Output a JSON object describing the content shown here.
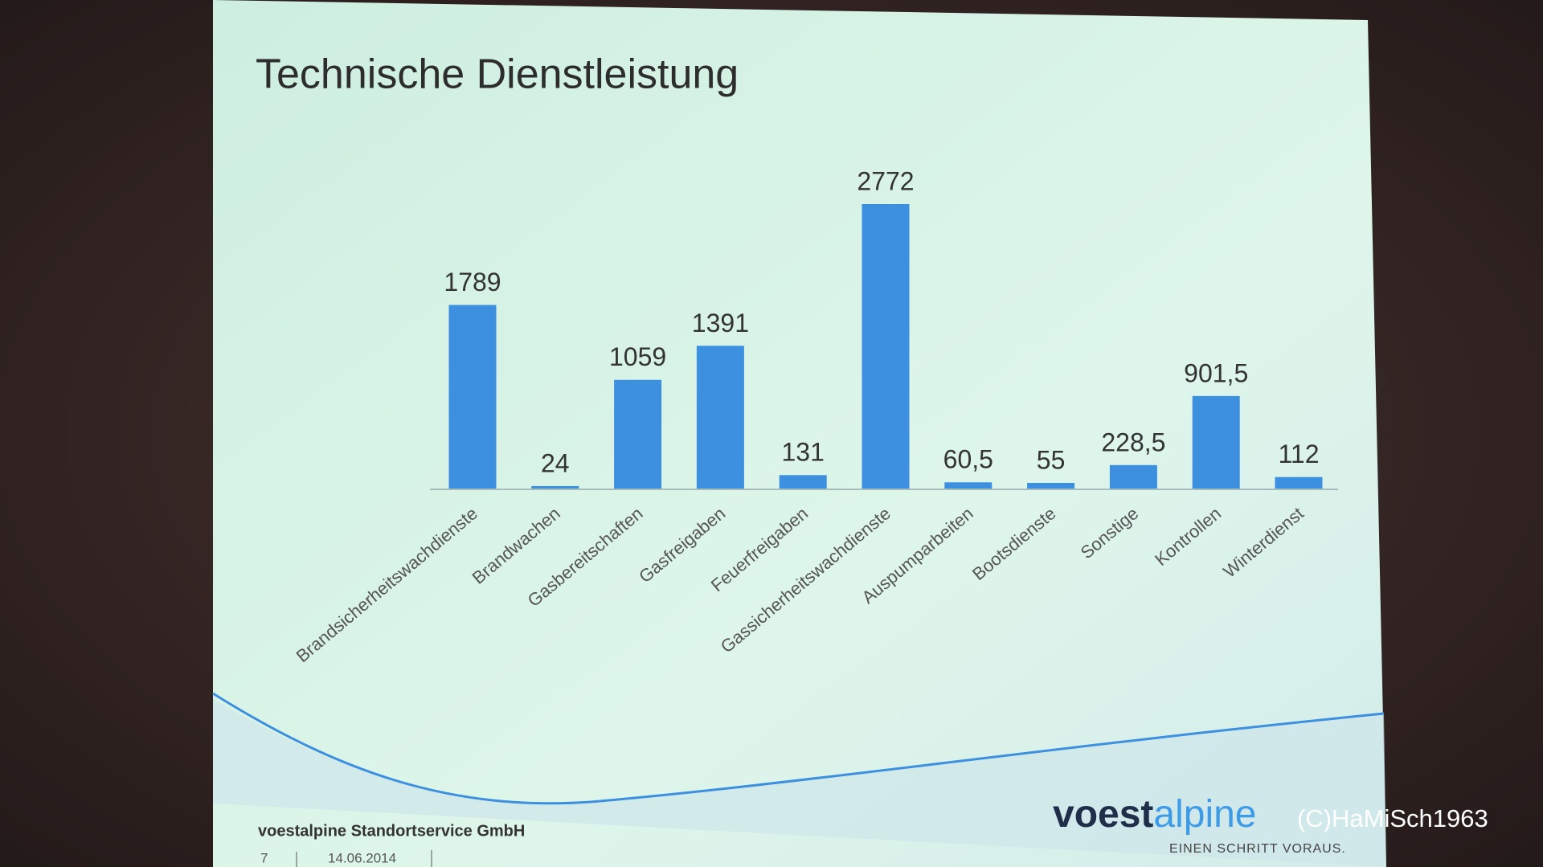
{
  "title": "Technische Dienstleistung",
  "chart_data": {
    "type": "bar",
    "categories": [
      "Brandsicherheitswachdienste",
      "Brandwachen",
      "Gasbereitschaften",
      "Gasfreigaben",
      "Feuerfreigaben",
      "Gassicherheitswachdienste",
      "Auspumparbeiten",
      "Bootsdienste",
      "Sonstige",
      "Kontrollen",
      "Winterdienst"
    ],
    "values": [
      1789,
      24,
      1059,
      1391,
      131,
      2772,
      60.5,
      55,
      228.5,
      901.5,
      112
    ],
    "value_labels": [
      "1789",
      "24",
      "1059",
      "1391",
      "131",
      "2772",
      "60,5",
      "55",
      "228,5",
      "901,5",
      "112"
    ],
    "color": "#3d8fe0"
  },
  "footer": {
    "company": "voestalpine Standortservice GmbH",
    "page": "7",
    "date": "14.06.2014"
  },
  "logo": {
    "name": [
      "voest",
      "alpine"
    ],
    "tagline": "EINEN SCHRITT VORAUS."
  },
  "watermark": "(C)HaMiSch1963"
}
